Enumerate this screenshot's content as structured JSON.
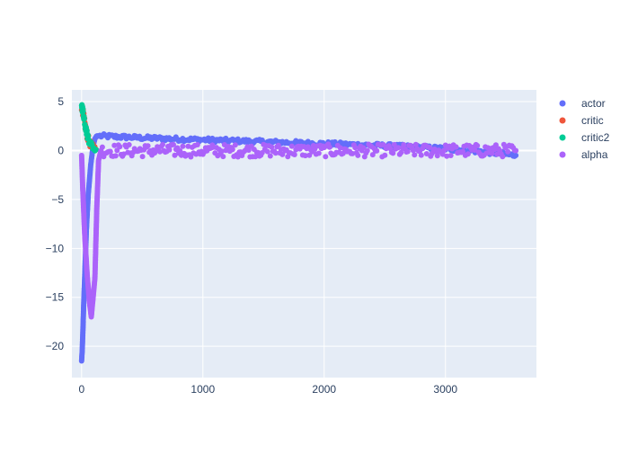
{
  "chart_data": {
    "type": "scatter",
    "xlim": [
      -80,
      3750
    ],
    "ylim": [
      -23.2,
      6.2
    ],
    "x_ticks": [
      0,
      1000,
      2000,
      3000
    ],
    "y_ticks": [
      5,
      0,
      -5,
      -10,
      -15,
      -20
    ],
    "x_tick_labels": [
      "0",
      "1000",
      "2000",
      "3000"
    ],
    "y_tick_labels": [
      "5",
      "0",
      "−5",
      "−10",
      "−15",
      "−20"
    ],
    "grid": true,
    "legend_position": "top-right",
    "series": [
      {
        "name": "actor",
        "color": "#636efa",
        "segments": [
          {
            "x": [
              0,
              5,
              10,
              18,
              28,
              40,
              55,
              75,
              95,
              110,
              120,
              125,
              130,
              140
            ],
            "y": [
              -21.5,
              -20.5,
              -18.8,
              -15.5,
              -12.0,
              -8.0,
              -4.5,
              -1.5,
              0.5,
              1.2,
              1.4,
              1.5,
              1.5,
              1.5
            ]
          },
          {
            "x": [
              140,
              500,
              1000,
              1500,
              2000,
              2500,
              3000,
              3300,
              3580
            ],
            "y": [
              1.5,
              1.3,
              1.1,
              0.9,
              0.7,
              0.5,
              0.2,
              -0.1,
              -0.5
            ]
          }
        ]
      },
      {
        "name": "critic",
        "color": "#ef553b",
        "segments": [
          {
            "x": [
              0,
              5,
              10,
              20,
              30,
              45,
              60,
              80,
              100,
              120
            ],
            "y": [
              4.5,
              4.3,
              4.0,
              3.3,
              2.5,
              1.6,
              1.0,
              0.5,
              0.2,
              0.1
            ]
          }
        ]
      },
      {
        "name": "critic2",
        "color": "#00cc96",
        "segments": [
          {
            "x": [
              0,
              5,
              10,
              20,
              30,
              45,
              60,
              80,
              100,
              120
            ],
            "y": [
              4.7,
              4.4,
              4.1,
              3.4,
              2.6,
              1.7,
              1.1,
              0.6,
              0.3,
              0.1
            ]
          }
        ]
      },
      {
        "name": "alpha",
        "color": "#ab63fa",
        "segments": [
          {
            "x": [
              0,
              10,
              25,
              45,
              65,
              80,
              95,
              110
            ],
            "y": [
              -0.5,
              -4.0,
              -8.5,
              -12.5,
              -15.5,
              -17.0,
              -15.0,
              -13.0
            ]
          },
          {
            "x": [
              110,
              125,
              140,
              160
            ],
            "y": [
              -13.0,
              -6.0,
              -1.0,
              0.0
            ]
          },
          {
            "x": [
              160,
              1000,
              2000,
              3000,
              3580
            ],
            "y": [
              0.0,
              0.0,
              0.0,
              0.0,
              0.0
            ]
          }
        ]
      }
    ]
  }
}
